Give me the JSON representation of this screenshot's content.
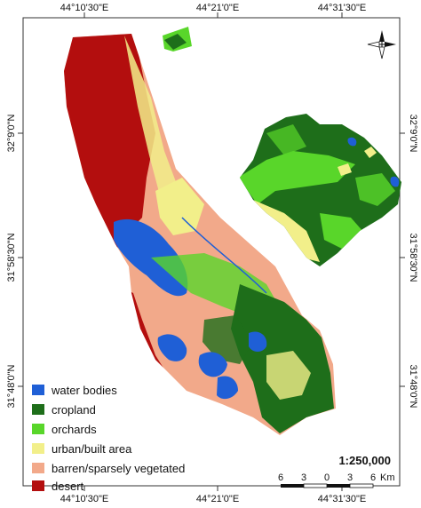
{
  "map": {
    "graticule": {
      "top_longitudes": [
        "44°10'30\"E",
        "44°21'0\"E",
        "44°31'30\"E"
      ],
      "bottom_longitudes": [
        "44°10'30\"E",
        "44°21'0\"E",
        "44°31'30\"E"
      ],
      "left_latitudes": [
        "32°9'0\"N",
        "31°58'30\"N",
        "31°48'0\"N"
      ],
      "right_latitudes": [
        "32°9'0\"N",
        "31°58'30\"N",
        "31°48'0\"N"
      ]
    },
    "legend": [
      {
        "label": "water bodies",
        "color": "#1f5fd6"
      },
      {
        "label": "cropland",
        "color": "#1e6e1a"
      },
      {
        "label": "orchards",
        "color": "#59d62a"
      },
      {
        "label": "urban/built area",
        "color": "#f2ef8a"
      },
      {
        "label": "barren/sparsely vegetated",
        "color": "#f2a98a"
      },
      {
        "label": "desert",
        "color": "#b30e0e"
      }
    ],
    "scale_ratio": "1:250,000",
    "scale_bar": {
      "ticks": [
        "6",
        "3",
        "0",
        "3",
        "6"
      ],
      "unit": "Km"
    },
    "north_arrow_icon": "compass-rose-icon"
  }
}
